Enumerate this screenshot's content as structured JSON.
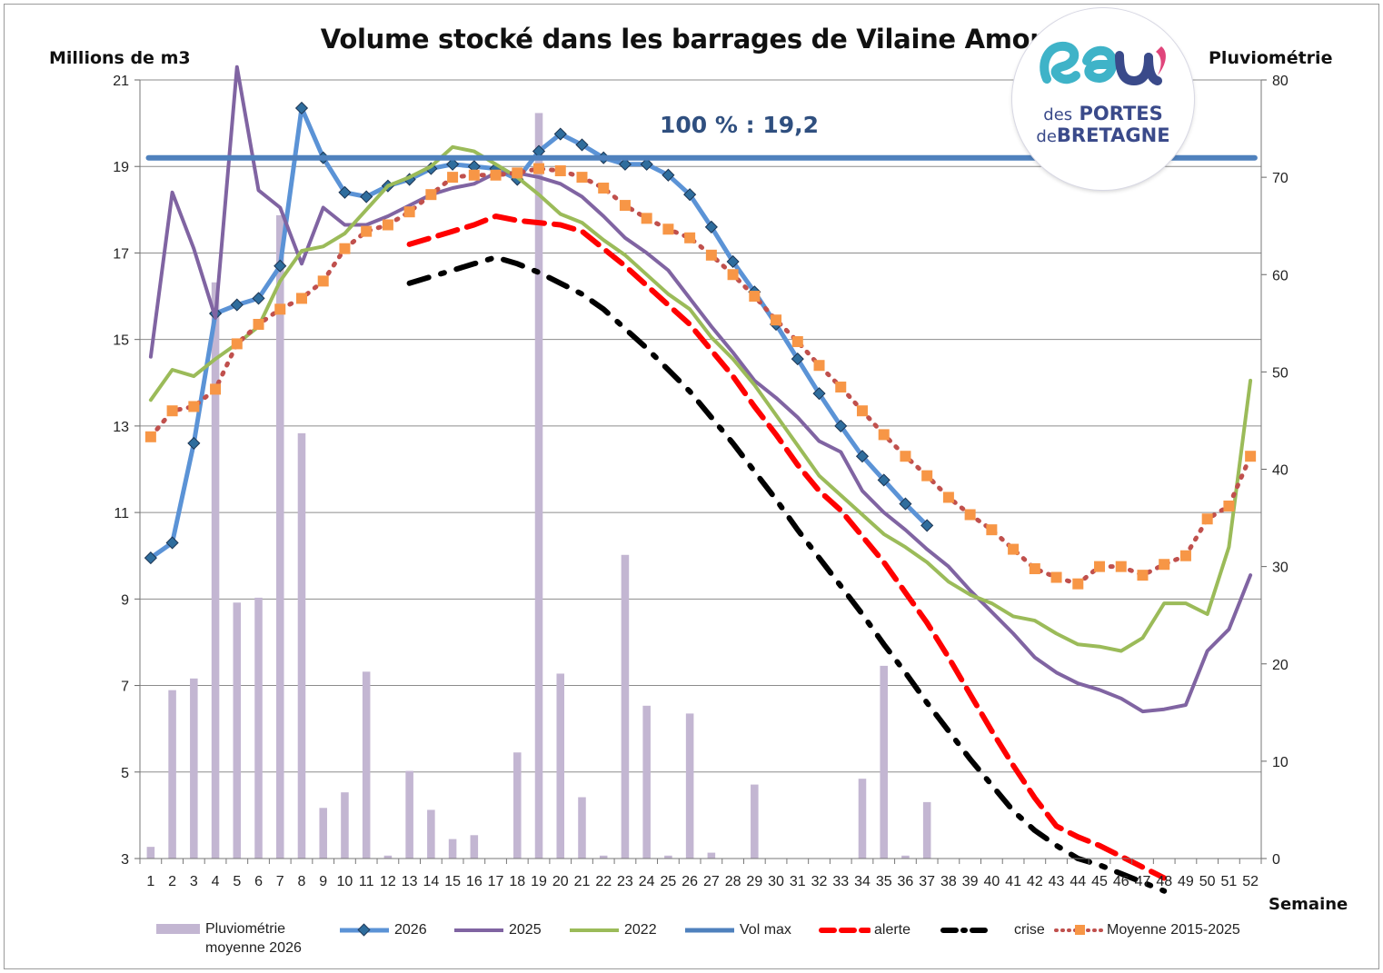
{
  "chart_data": {
    "type": "line",
    "title": "Volume stocké dans les barrages de Vilaine Amont",
    "ylabel": "Millions de m3",
    "y2label": "Pluviométrie",
    "xlabel": "Semaine",
    "annotation": "100 % : 19,2",
    "ylim": [
      3,
      21
    ],
    "y2lim": [
      0,
      80
    ],
    "yticks": [
      "3",
      "5",
      "7",
      "9",
      "11",
      "13",
      "15",
      "17",
      "19",
      "21"
    ],
    "y2ticks": [
      "0",
      "10",
      "20",
      "30",
      "40",
      "50",
      "60",
      "70",
      "80"
    ],
    "grid": true,
    "legend_position": "bottom",
    "categories": [
      "1",
      "2",
      "3",
      "4",
      "5",
      "6",
      "7",
      "8",
      "9",
      "10",
      "11",
      "12",
      "13",
      "14",
      "15",
      "16",
      "17",
      "18",
      "19",
      "20",
      "21",
      "22",
      "23",
      "24",
      "25",
      "26",
      "27",
      "28",
      "29",
      "30",
      "31",
      "32",
      "33",
      "34",
      "35",
      "36",
      "37",
      "38",
      "39",
      "40",
      "41",
      "42",
      "43",
      "44",
      "45",
      "46",
      "47",
      "48",
      "49",
      "50",
      "51",
      "52"
    ],
    "series": [
      {
        "name": "Pluviométrie moyenne 2026",
        "type": "bar",
        "axis": "right",
        "color": "#c3b6d2",
        "values": [
          1.2,
          17.3,
          18.5,
          59.2,
          26.3,
          26.8,
          66.1,
          43.7,
          5.2,
          6.8,
          19.2,
          0.3,
          9,
          5,
          2,
          2.4,
          0,
          10.9,
          76.6,
          19,
          6.3,
          0.3,
          31.2,
          15.7,
          0.3,
          14.9,
          0.6,
          0,
          7.6,
          0,
          0,
          0,
          0,
          8.2,
          19.8,
          0.3,
          5.8,
          null,
          null,
          null,
          null,
          null,
          null,
          null,
          null,
          null,
          null,
          null,
          null,
          null,
          null,
          null
        ]
      },
      {
        "name": "2026",
        "type": "line",
        "axis": "left",
        "color": "#5b93d6",
        "marker": "diamond",
        "values": [
          9.95,
          10.3,
          12.6,
          15.6,
          15.8,
          15.95,
          16.7,
          20.35,
          19.2,
          18.4,
          18.3,
          18.55,
          18.7,
          18.95,
          19.05,
          19.0,
          18.95,
          18.7,
          19.35,
          19.75,
          19.5,
          19.2,
          19.05,
          19.05,
          18.8,
          18.35,
          17.6,
          16.8,
          16.1,
          15.35,
          14.55,
          13.75,
          13.0,
          12.3,
          11.75,
          11.2,
          10.7,
          null,
          null,
          null,
          null,
          null,
          null,
          null,
          null,
          null,
          null,
          null,
          null,
          null,
          null,
          null
        ]
      },
      {
        "name": "2025",
        "type": "line",
        "axis": "left",
        "color": "#8064a2",
        "values": [
          14.6,
          18.4,
          17.1,
          15.5,
          21.3,
          18.45,
          18.05,
          16.75,
          18.05,
          17.65,
          17.65,
          17.85,
          18.1,
          18.35,
          18.5,
          18.6,
          18.85,
          18.85,
          18.75,
          18.6,
          18.3,
          17.85,
          17.35,
          17.0,
          16.6,
          15.95,
          15.3,
          14.7,
          14.05,
          13.65,
          13.2,
          12.65,
          12.4,
          11.5,
          11.0,
          10.6,
          10.15,
          9.75,
          9.2,
          8.7,
          8.2,
          7.65,
          7.3,
          7.05,
          6.9,
          6.7,
          6.4,
          6.45,
          6.55,
          7.8,
          8.3,
          9.55
        ]
      },
      {
        "name": "2022",
        "type": "line",
        "axis": "left",
        "color": "#9bbb59",
        "values": [
          13.6,
          14.3,
          14.15,
          14.55,
          14.9,
          15.3,
          16.35,
          17.05,
          17.15,
          17.45,
          18.0,
          18.55,
          18.75,
          19.0,
          19.45,
          19.35,
          19.05,
          18.75,
          18.35,
          17.9,
          17.7,
          17.3,
          16.95,
          16.5,
          16.05,
          15.7,
          15.05,
          14.55,
          13.95,
          13.25,
          12.55,
          11.85,
          11.4,
          10.95,
          10.5,
          10.2,
          9.85,
          9.4,
          9.1,
          8.9,
          8.6,
          8.5,
          8.2,
          7.95,
          7.9,
          7.8,
          8.1,
          8.9,
          8.9,
          8.65,
          10.2,
          14.05
        ]
      },
      {
        "name": "Vol max",
        "type": "line",
        "axis": "left",
        "color": "#4f81bd",
        "values": [
          19.2,
          19.2,
          19.2,
          19.2,
          19.2,
          19.2,
          19.2,
          19.2,
          19.2,
          19.2,
          19.2,
          19.2,
          19.2,
          19.2,
          19.2,
          19.2,
          19.2,
          19.2,
          19.2,
          19.2,
          19.2,
          19.2,
          19.2,
          19.2,
          19.2,
          19.2,
          19.2,
          19.2,
          19.2,
          19.2,
          19.2,
          19.2,
          19.2,
          19.2,
          19.2,
          19.2,
          19.2,
          19.2,
          19.2,
          19.2,
          19.2,
          19.2,
          19.2,
          19.2,
          19.2,
          19.2,
          19.2,
          19.2,
          19.2,
          19.2,
          19.2,
          19.2
        ]
      },
      {
        "name": "alerte",
        "type": "line",
        "axis": "left",
        "color": "#ff0000",
        "dash": "dash",
        "values": [
          null,
          null,
          null,
          null,
          null,
          null,
          null,
          null,
          null,
          null,
          null,
          null,
          17.2,
          17.35,
          17.5,
          17.65,
          17.85,
          17.75,
          17.7,
          17.65,
          17.5,
          17.1,
          16.7,
          16.25,
          15.8,
          15.35,
          14.75,
          14.15,
          13.45,
          12.8,
          12.1,
          11.5,
          11.05,
          10.45,
          9.85,
          9.15,
          8.45,
          7.65,
          6.8,
          5.95,
          5.15,
          4.4,
          3.75,
          3.5,
          3.3,
          3.05,
          2.8,
          2.55,
          null,
          null,
          null,
          null
        ]
      },
      {
        "name": "crise",
        "type": "line",
        "axis": "left",
        "color": "#000000",
        "dash": "dashdot",
        "values": [
          null,
          null,
          null,
          null,
          null,
          null,
          null,
          null,
          null,
          null,
          null,
          null,
          16.3,
          16.45,
          16.6,
          16.75,
          16.9,
          16.75,
          16.55,
          16.3,
          16.05,
          15.7,
          15.25,
          14.8,
          14.3,
          13.8,
          13.2,
          12.6,
          11.95,
          11.3,
          10.6,
          9.95,
          9.3,
          8.65,
          7.95,
          7.3,
          6.6,
          5.95,
          5.3,
          4.7,
          4.1,
          3.65,
          3.3,
          3.0,
          2.85,
          2.65,
          2.45,
          2.25,
          null,
          null,
          null,
          null
        ]
      },
      {
        "name": "Moyenne 2015-2025",
        "type": "line",
        "axis": "left",
        "color": "#c0504d",
        "dash": "dot",
        "marker": "square",
        "marker_color": "#f79646",
        "values": [
          12.75,
          13.35,
          13.45,
          13.85,
          14.9,
          15.35,
          15.7,
          15.95,
          16.35,
          17.1,
          17.5,
          17.65,
          17.95,
          18.35,
          18.75,
          18.8,
          18.8,
          18.85,
          18.95,
          18.9,
          18.75,
          18.5,
          18.1,
          17.8,
          17.55,
          17.35,
          16.95,
          16.5,
          16.0,
          15.45,
          14.95,
          14.4,
          13.9,
          13.35,
          12.8,
          12.3,
          11.85,
          11.35,
          10.95,
          10.6,
          10.15,
          9.7,
          9.5,
          9.35,
          9.75,
          9.75,
          9.55,
          9.8,
          10.0,
          10.85,
          11.15,
          12.3
        ]
      }
    ]
  },
  "legend": {
    "rain_line1": "Pluviométrie",
    "rain_line2": "moyenne 2026",
    "s2026": "2026",
    "s2025": "2025",
    "s2022": "2022",
    "volmax": "Vol max",
    "alerte": "alerte",
    "crise": "crise",
    "moyenne": "Moyenne 2015-2025"
  },
  "logo": {
    "word": "eau'",
    "line1_prefix": "des",
    "line1_main": "PORTES",
    "line2_prefix": "de",
    "line2_main": "BRETAGNE",
    "colors": [
      "#3a4a8a",
      "#3fb3c8",
      "#e0457b"
    ]
  }
}
